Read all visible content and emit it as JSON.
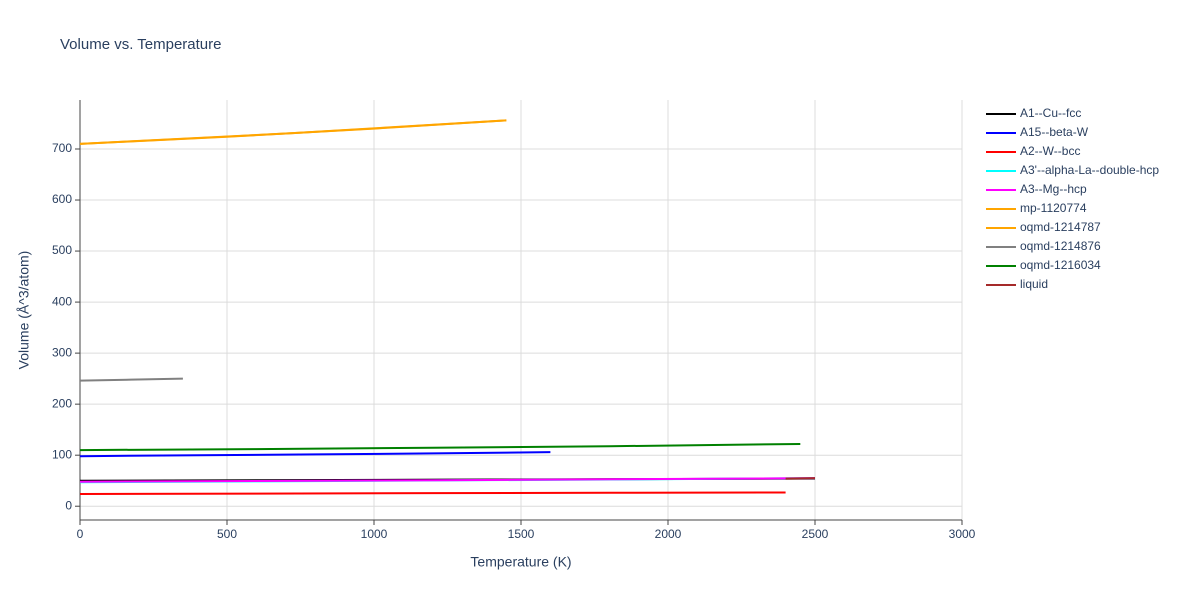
{
  "chart_data": {
    "type": "line",
    "title": "Volume vs. Temperature",
    "x_label": "Temperature (K)",
    "y_label": "Volume (Å^3/atom)",
    "xlim": [
      0,
      3000
    ],
    "ylim": [
      -27,
      796
    ],
    "xticks": [
      0,
      500,
      1000,
      1500,
      2000,
      2500,
      3000
    ],
    "yticks": [
      0,
      100,
      200,
      300,
      400,
      500,
      600,
      700
    ],
    "grid": true,
    "legend": "right",
    "series": [
      {
        "name": "A1--Cu--fcc",
        "color": "#000000",
        "x": [
          0,
          1250,
          2500
        ],
        "values": [
          50,
          52,
          54
        ]
      },
      {
        "name": "A15--beta-W",
        "color": "#0000ff",
        "x": [
          0,
          400,
          800,
          1200,
          1600
        ],
        "values": [
          98,
          100,
          101.5,
          103.5,
          106
        ]
      },
      {
        "name": "A2--W--bcc",
        "color": "#ff0000",
        "x": [
          0,
          600,
          1200,
          1800,
          2400
        ],
        "values": [
          24,
          24.8,
          25.6,
          26.3,
          27
        ]
      },
      {
        "name": "A3'--alpha-La--double-hcp",
        "color": "#00ffff",
        "x": [
          0,
          625,
          1250,
          1875,
          2500
        ],
        "values": [
          47,
          48.8,
          50.6,
          52.6,
          55
        ]
      },
      {
        "name": "A3--Mg--hcp",
        "color": "#ff00ff",
        "x": [
          0,
          1250,
          2500
        ],
        "values": [
          48,
          51,
          55
        ]
      },
      {
        "name": "mp-1120774",
        "color": "#ffa500",
        "x": [
          0,
          725,
          1450
        ],
        "values": [
          710,
          731,
          756
        ]
      },
      {
        "name": "oqmd-1214787",
        "color": "#ffa500",
        "x": [
          0,
          500,
          1000,
          1450
        ],
        "values": [
          710,
          724,
          740,
          756
        ]
      },
      {
        "name": "oqmd-1214876",
        "color": "#808080",
        "x": [
          0,
          175,
          350
        ],
        "values": [
          246,
          248,
          250
        ]
      },
      {
        "name": "oqmd-1216034",
        "color": "#008000",
        "x": [
          0,
          600,
          1200,
          1800,
          2450
        ],
        "values": [
          110,
          112,
          114.5,
          117.5,
          122
        ]
      },
      {
        "name": "liquid",
        "color": "#a52a2a",
        "x": [
          2400,
          2500
        ],
        "values": [
          54,
          55
        ]
      }
    ]
  }
}
